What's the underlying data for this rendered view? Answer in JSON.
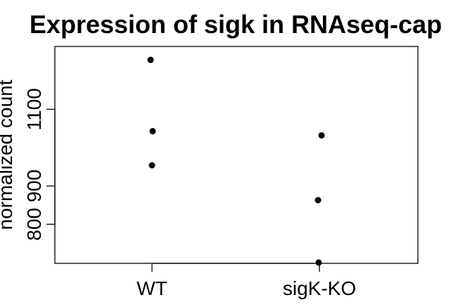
{
  "chart_data": {
    "type": "scatter",
    "title": "Expression of sigk in RNAseq-cap",
    "xlabel": "",
    "ylabel": "normalized count",
    "categories": [
      "WT",
      "sigK-KO"
    ],
    "y_ticks": [
      800,
      900,
      1100
    ],
    "ylim": [
      698,
      1264
    ],
    "grid": false,
    "legend": "none",
    "series": [
      {
        "points": [
          {
            "category": "WT",
            "y": 1229
          },
          {
            "category": "WT",
            "y": 1043
          },
          {
            "category": "WT",
            "y": 954
          },
          {
            "category": "sigK-KO",
            "y": 1032
          },
          {
            "category": "sigK-KO",
            "y": 863
          },
          {
            "category": "sigK-KO",
            "y": 700
          }
        ]
      }
    ],
    "jitter": [
      -0.02,
      0.01,
      0.0,
      0.03,
      -0.02,
      -0.01
    ],
    "colors": {
      "point": "#000000",
      "axis": "#000000",
      "background": "#ffffff"
    }
  }
}
